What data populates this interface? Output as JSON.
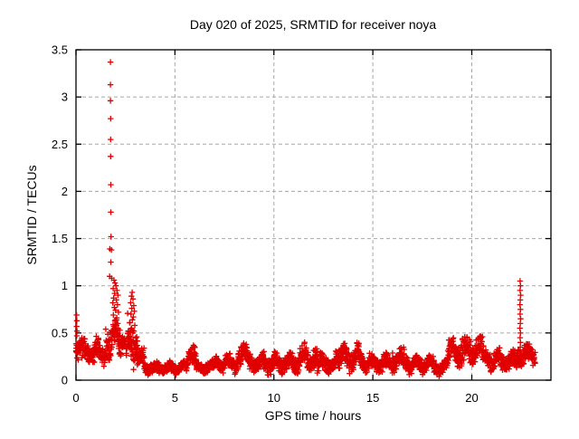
{
  "page": {
    "background": "#ffffff"
  },
  "chart_data": {
    "type": "scatter",
    "title": "Day 020 of 2025, SRMTID for receiver noya",
    "xlabel": "GPS time / hours",
    "ylabel": "SRMTID / TECUs",
    "xlim": [
      0,
      24
    ],
    "ylim": [
      0,
      3.5
    ],
    "xticks": [
      0,
      5,
      10,
      15,
      20
    ],
    "xtick_labels": [
      "0",
      "5",
      "10",
      "15",
      "20"
    ],
    "yticks": [
      0,
      0.5,
      1,
      1.5,
      2,
      2.5,
      3,
      3.5
    ],
    "ytick_labels": [
      "0",
      "0.5",
      "1",
      "1.5",
      "2",
      "2.5",
      "3",
      "3.5"
    ],
    "grid": true,
    "grid_style": "dashed",
    "legend": false,
    "series": [
      {
        "name": "SRMTID",
        "marker": "plus",
        "color": "#e10000"
      }
    ],
    "colors": {
      "marker": "#e10000",
      "grid": "#a8a8a8",
      "axis": "#000000",
      "background": "#ffffff"
    },
    "peak_value": 3.37,
    "peak_time": 1.74,
    "spike_points": [
      [
        1.74,
        3.37
      ],
      [
        1.74,
        3.13
      ],
      [
        1.74,
        2.96
      ],
      [
        1.75,
        2.77
      ],
      [
        1.75,
        2.55
      ],
      [
        1.75,
        2.37
      ],
      [
        1.76,
        2.07
      ],
      [
        1.76,
        1.78
      ],
      [
        1.77,
        1.52
      ],
      [
        1.71,
        1.39
      ],
      [
        1.79,
        1.38
      ],
      [
        1.76,
        1.25
      ],
      [
        1.7,
        1.1
      ],
      [
        1.8,
        1.08
      ],
      [
        1.92,
        1.06
      ],
      [
        1.97,
        1.03
      ],
      [
        2.02,
        1.0
      ],
      [
        1.88,
        0.97
      ],
      [
        2.07,
        0.95
      ],
      [
        1.95,
        0.92
      ],
      [
        2.12,
        0.9
      ],
      [
        1.9,
        0.87
      ],
      [
        2.04,
        0.85
      ],
      [
        1.86,
        0.82
      ],
      [
        2.1,
        0.8
      ],
      [
        1.94,
        0.77
      ],
      [
        2.0,
        0.74
      ],
      [
        2.15,
        0.72
      ],
      [
        1.89,
        0.69
      ],
      [
        2.06,
        0.66
      ],
      [
        1.96,
        0.63
      ],
      [
        2.11,
        0.6
      ],
      [
        1.91,
        0.57
      ],
      [
        2.03,
        0.55
      ],
      [
        2.84,
        0.93
      ],
      [
        2.8,
        0.89
      ],
      [
        2.88,
        0.86
      ],
      [
        2.76,
        0.82
      ],
      [
        2.92,
        0.79
      ],
      [
        2.82,
        0.76
      ],
      [
        2.95,
        0.73
      ],
      [
        2.78,
        0.7
      ],
      [
        2.9,
        0.67
      ],
      [
        2.85,
        0.64
      ],
      [
        2.73,
        0.61
      ],
      [
        2.97,
        0.58
      ],
      [
        2.81,
        0.55
      ],
      [
        2.93,
        0.52
      ],
      [
        2.87,
        0.5
      ],
      [
        0.03,
        0.69
      ],
      [
        0.04,
        0.63
      ],
      [
        0.03,
        0.57
      ],
      [
        0.05,
        0.52
      ],
      [
        0.04,
        0.47
      ],
      [
        18.25,
        0.06
      ],
      [
        18.35,
        0.04
      ],
      [
        22.44,
        1.05
      ],
      [
        22.46,
        1.0
      ],
      [
        22.44,
        0.95
      ],
      [
        22.47,
        0.9
      ],
      [
        22.45,
        0.85
      ],
      [
        22.43,
        0.8
      ],
      [
        22.46,
        0.75
      ],
      [
        22.44,
        0.7
      ],
      [
        22.47,
        0.65
      ],
      [
        22.45,
        0.6
      ],
      [
        22.43,
        0.55
      ],
      [
        22.46,
        0.5
      ],
      [
        22.44,
        0.45
      ],
      [
        22.46,
        0.4
      ],
      [
        22.45,
        0.35
      ],
      [
        22.44,
        0.3
      ],
      [
        22.46,
        0.25
      ],
      [
        22.45,
        0.21
      ]
    ],
    "band_segments": [
      {
        "t0": 0.0,
        "t1": 0.3,
        "v0": 0.42,
        "v1": 0.32,
        "amp": 0.22
      },
      {
        "t0": 0.3,
        "t1": 1.5,
        "v0": 0.3,
        "v1": 0.3,
        "amp": 0.2
      },
      {
        "t0": 1.5,
        "t1": 2.25,
        "v0": 0.42,
        "v1": 0.45,
        "amp": 0.3
      },
      {
        "t0": 2.25,
        "t1": 2.6,
        "v0": 0.33,
        "v1": 0.35,
        "amp": 0.18
      },
      {
        "t0": 2.6,
        "t1": 3.1,
        "v0": 0.45,
        "v1": 0.4,
        "amp": 0.35
      },
      {
        "t0": 3.1,
        "t1": 3.45,
        "v0": 0.3,
        "v1": 0.18,
        "amp": 0.18
      },
      {
        "t0": 3.45,
        "t1": 5.6,
        "v0": 0.13,
        "v1": 0.13,
        "amp": 0.1
      },
      {
        "t0": 5.6,
        "t1": 6.1,
        "v0": 0.24,
        "v1": 0.22,
        "amp": 0.22
      },
      {
        "t0": 6.1,
        "t1": 7.0,
        "v0": 0.13,
        "v1": 0.14,
        "amp": 0.1
      },
      {
        "t0": 7.0,
        "t1": 8.2,
        "v0": 0.18,
        "v1": 0.18,
        "amp": 0.14
      },
      {
        "t0": 8.2,
        "t1": 8.8,
        "v0": 0.26,
        "v1": 0.24,
        "amp": 0.2
      },
      {
        "t0": 8.8,
        "t1": 11.3,
        "v0": 0.18,
        "v1": 0.18,
        "amp": 0.16
      },
      {
        "t0": 11.3,
        "t1": 12.2,
        "v0": 0.24,
        "v1": 0.22,
        "amp": 0.2
      },
      {
        "t0": 12.2,
        "t1": 13.3,
        "v0": 0.18,
        "v1": 0.18,
        "amp": 0.16
      },
      {
        "t0": 13.3,
        "t1": 14.5,
        "v0": 0.24,
        "v1": 0.24,
        "amp": 0.22
      },
      {
        "t0": 14.5,
        "t1": 16.0,
        "v0": 0.18,
        "v1": 0.18,
        "amp": 0.16
      },
      {
        "t0": 16.0,
        "t1": 16.6,
        "v0": 0.24,
        "v1": 0.22,
        "amp": 0.18
      },
      {
        "t0": 16.6,
        "t1": 18.1,
        "v0": 0.18,
        "v1": 0.16,
        "amp": 0.14
      },
      {
        "t0": 18.1,
        "t1": 18.8,
        "v0": 0.12,
        "v1": 0.16,
        "amp": 0.1
      },
      {
        "t0": 18.8,
        "t1": 20.6,
        "v0": 0.3,
        "v1": 0.32,
        "amp": 0.24
      },
      {
        "t0": 20.6,
        "t1": 22.3,
        "v0": 0.22,
        "v1": 0.2,
        "amp": 0.18
      },
      {
        "t0": 22.3,
        "t1": 23.2,
        "v0": 0.26,
        "v1": 0.28,
        "amp": 0.18
      }
    ]
  }
}
